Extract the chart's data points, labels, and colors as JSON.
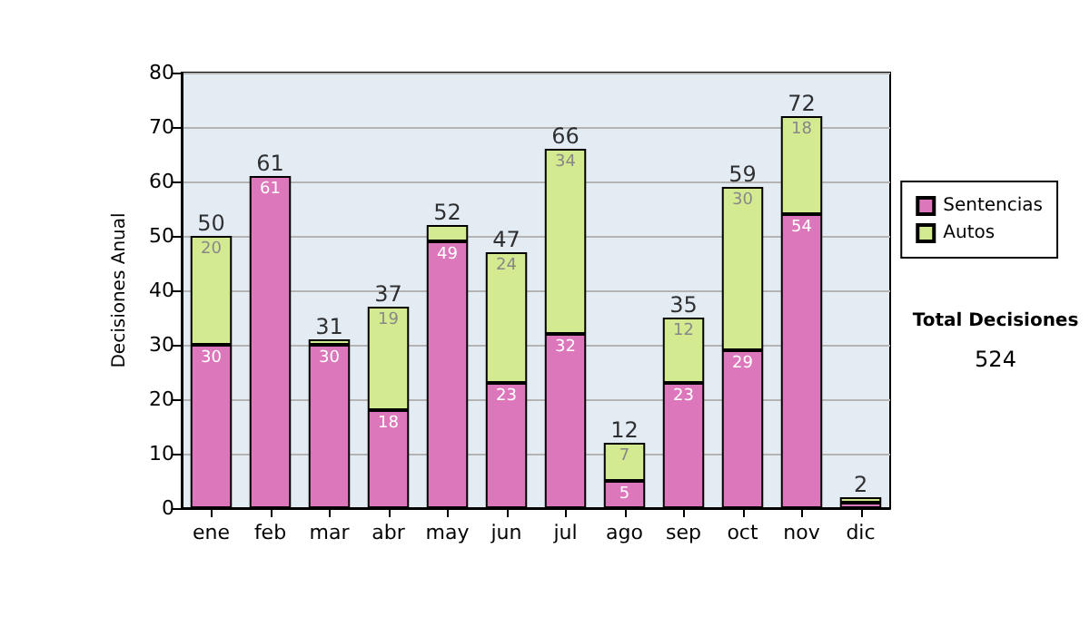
{
  "chart_data": {
    "type": "bar",
    "stacked": true,
    "ylabel": "Decisiones Anual",
    "categories": [
      "ene",
      "feb",
      "mar",
      "abr",
      "may",
      "jun",
      "jul",
      "ago",
      "sep",
      "oct",
      "nov",
      "dic"
    ],
    "series": [
      {
        "name": "Sentencias",
        "color": "#dd77bb",
        "values": [
          30,
          61,
          30,
          18,
          49,
          23,
          32,
          5,
          23,
          29,
          54,
          1
        ],
        "value_labels": [
          "30",
          "61",
          "30",
          "18",
          "49",
          "23",
          "32",
          "5",
          "23",
          "29",
          "54",
          null
        ]
      },
      {
        "name": "Autos",
        "color": "#d4ea90",
        "values": [
          20,
          null,
          1,
          19,
          3,
          24,
          34,
          7,
          12,
          30,
          18,
          1
        ],
        "value_labels": [
          "20",
          null,
          null,
          "19",
          null,
          "24",
          "34",
          "7",
          "12",
          "30",
          "18",
          null
        ]
      }
    ],
    "totals": [
      "50",
      "61",
      "31",
      "37",
      "52",
      "47",
      "66",
      "12",
      "35",
      "59",
      "72",
      "2"
    ],
    "ylim": [
      0,
      80
    ],
    "yticks": [
      0,
      10,
      20,
      30,
      40,
      50,
      60,
      70,
      80
    ],
    "grid": "y",
    "legend": "right",
    "annotations": [
      "Total Decisiones",
      "524"
    ]
  }
}
